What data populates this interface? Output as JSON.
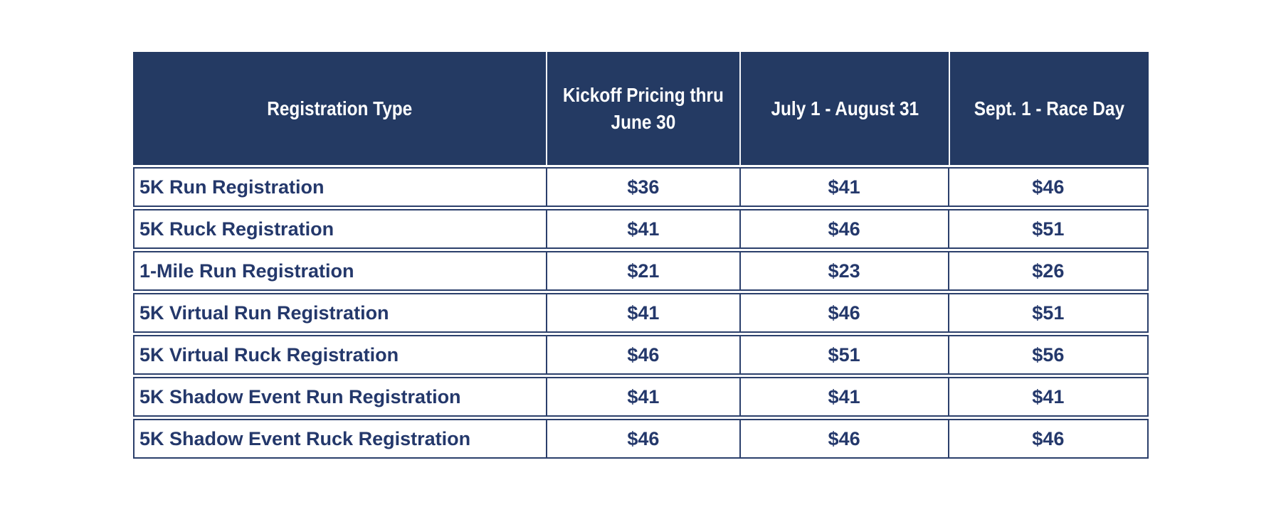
{
  "table": {
    "columns": [
      {
        "label": "Registration Type"
      },
      {
        "label": "Kickoff Pricing thru\nJune 30"
      },
      {
        "label": "July 1 - August 31"
      },
      {
        "label": "Sept. 1 - Race Day"
      }
    ],
    "rows": [
      {
        "label": "5K Run Registration",
        "prices": [
          "$36",
          "$41",
          "$46"
        ]
      },
      {
        "label": "5K Ruck Registration",
        "prices": [
          "$41",
          "$46",
          "$51"
        ]
      },
      {
        "label": "1-Mile Run Registration",
        "prices": [
          "$21",
          "$23",
          "$26"
        ]
      },
      {
        "label": "5K Virtual Run Registration",
        "prices": [
          "$41",
          "$46",
          "$51"
        ]
      },
      {
        "label": "5K Virtual Ruck Registration",
        "prices": [
          "$46",
          "$51",
          "$56"
        ]
      },
      {
        "label": "5K Shadow Event Run Registration",
        "prices": [
          "$41",
          "$41",
          "$41"
        ]
      },
      {
        "label": "5K Shadow Event Ruck Registration",
        "prices": [
          "$46",
          "$46",
          "$46"
        ]
      }
    ]
  },
  "colors": {
    "header_background": "#243a63",
    "header_text": "#ffffff",
    "header_divider": "#f5f6fa",
    "body_text": "#24386b",
    "body_border": "#2b3f6b",
    "page_background": "#ffffff"
  },
  "chart_data": {
    "type": "table",
    "title": "",
    "columns": [
      "Registration Type",
      "Kickoff Pricing thru June 30",
      "July 1 - August 31",
      "Sept. 1 - Race Day"
    ],
    "rows": [
      [
        "5K Run Registration",
        "$36",
        "$41",
        "$46"
      ],
      [
        "5K Ruck Registration",
        "$41",
        "$46",
        "$51"
      ],
      [
        "1-Mile Run Registration",
        "$21",
        "$23",
        "$26"
      ],
      [
        "5K Virtual Run Registration",
        "$41",
        "$46",
        "$51"
      ],
      [
        "5K Virtual Ruck Registration",
        "$46",
        "$51",
        "$56"
      ],
      [
        "5K Shadow Event Run Registration",
        "$41",
        "$41",
        "$41"
      ],
      [
        "5K Shadow Event Ruck Registration",
        "$46",
        "$46",
        "$46"
      ]
    ]
  }
}
